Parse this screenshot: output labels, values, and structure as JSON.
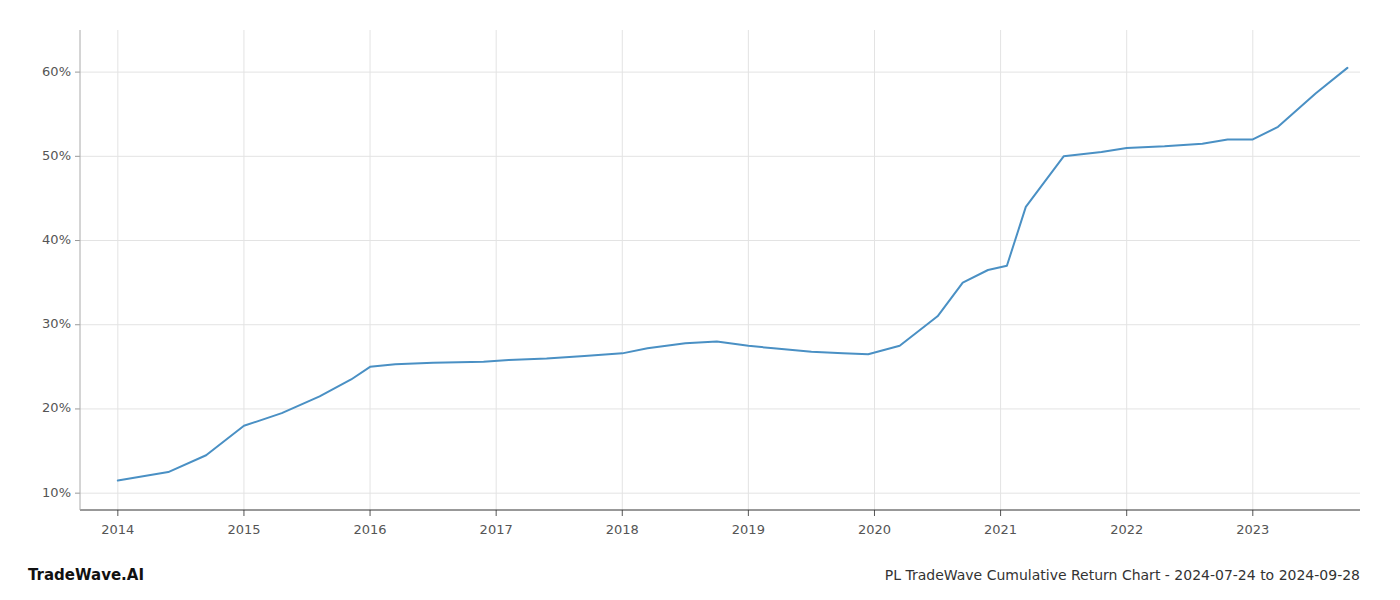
{
  "chart_data": {
    "type": "line",
    "title": "PL TradeWave Cumulative Return Chart - 2024-07-24 to 2024-09-28",
    "annotations": [
      "TradeWave.AI"
    ],
    "color": "#4a90c4",
    "grid": true,
    "x": [
      2014.0,
      2014.4,
      2014.7,
      2015.0,
      2015.3,
      2015.6,
      2015.85,
      2016.0,
      2016.2,
      2016.5,
      2016.9,
      2017.1,
      2017.4,
      2017.7,
      2018.0,
      2018.2,
      2018.5,
      2018.75,
      2019.0,
      2019.2,
      2019.5,
      2019.75,
      2019.95,
      2020.2,
      2020.5,
      2020.7,
      2020.9,
      2021.05,
      2021.2,
      2021.5,
      2021.8,
      2022.0,
      2022.3,
      2022.6,
      2022.8,
      2023.0,
      2023.2,
      2023.5,
      2023.75
    ],
    "values": [
      11.5,
      12.5,
      14.5,
      18.0,
      19.5,
      21.5,
      23.5,
      25.0,
      25.3,
      25.5,
      25.6,
      25.8,
      26.0,
      26.3,
      26.6,
      27.2,
      27.8,
      28.0,
      27.5,
      27.2,
      26.8,
      26.6,
      26.5,
      27.5,
      31.0,
      35.0,
      36.5,
      37.0,
      44.0,
      50.0,
      50.5,
      51.0,
      51.2,
      51.5,
      52.0,
      52.0,
      53.5,
      57.5,
      60.5
    ],
    "xlim": [
      2013.7,
      2023.85
    ],
    "ylim": [
      8,
      65
    ],
    "xticks": [
      2014,
      2015,
      2016,
      2017,
      2018,
      2019,
      2020,
      2021,
      2022,
      2023
    ],
    "yticks": [
      {
        "value": 10,
        "label": "10%"
      },
      {
        "value": 20,
        "label": "20%"
      },
      {
        "value": 30,
        "label": "30%"
      },
      {
        "value": 40,
        "label": "40%"
      },
      {
        "value": 50,
        "label": "50%"
      },
      {
        "value": 60,
        "label": "60%"
      }
    ]
  }
}
